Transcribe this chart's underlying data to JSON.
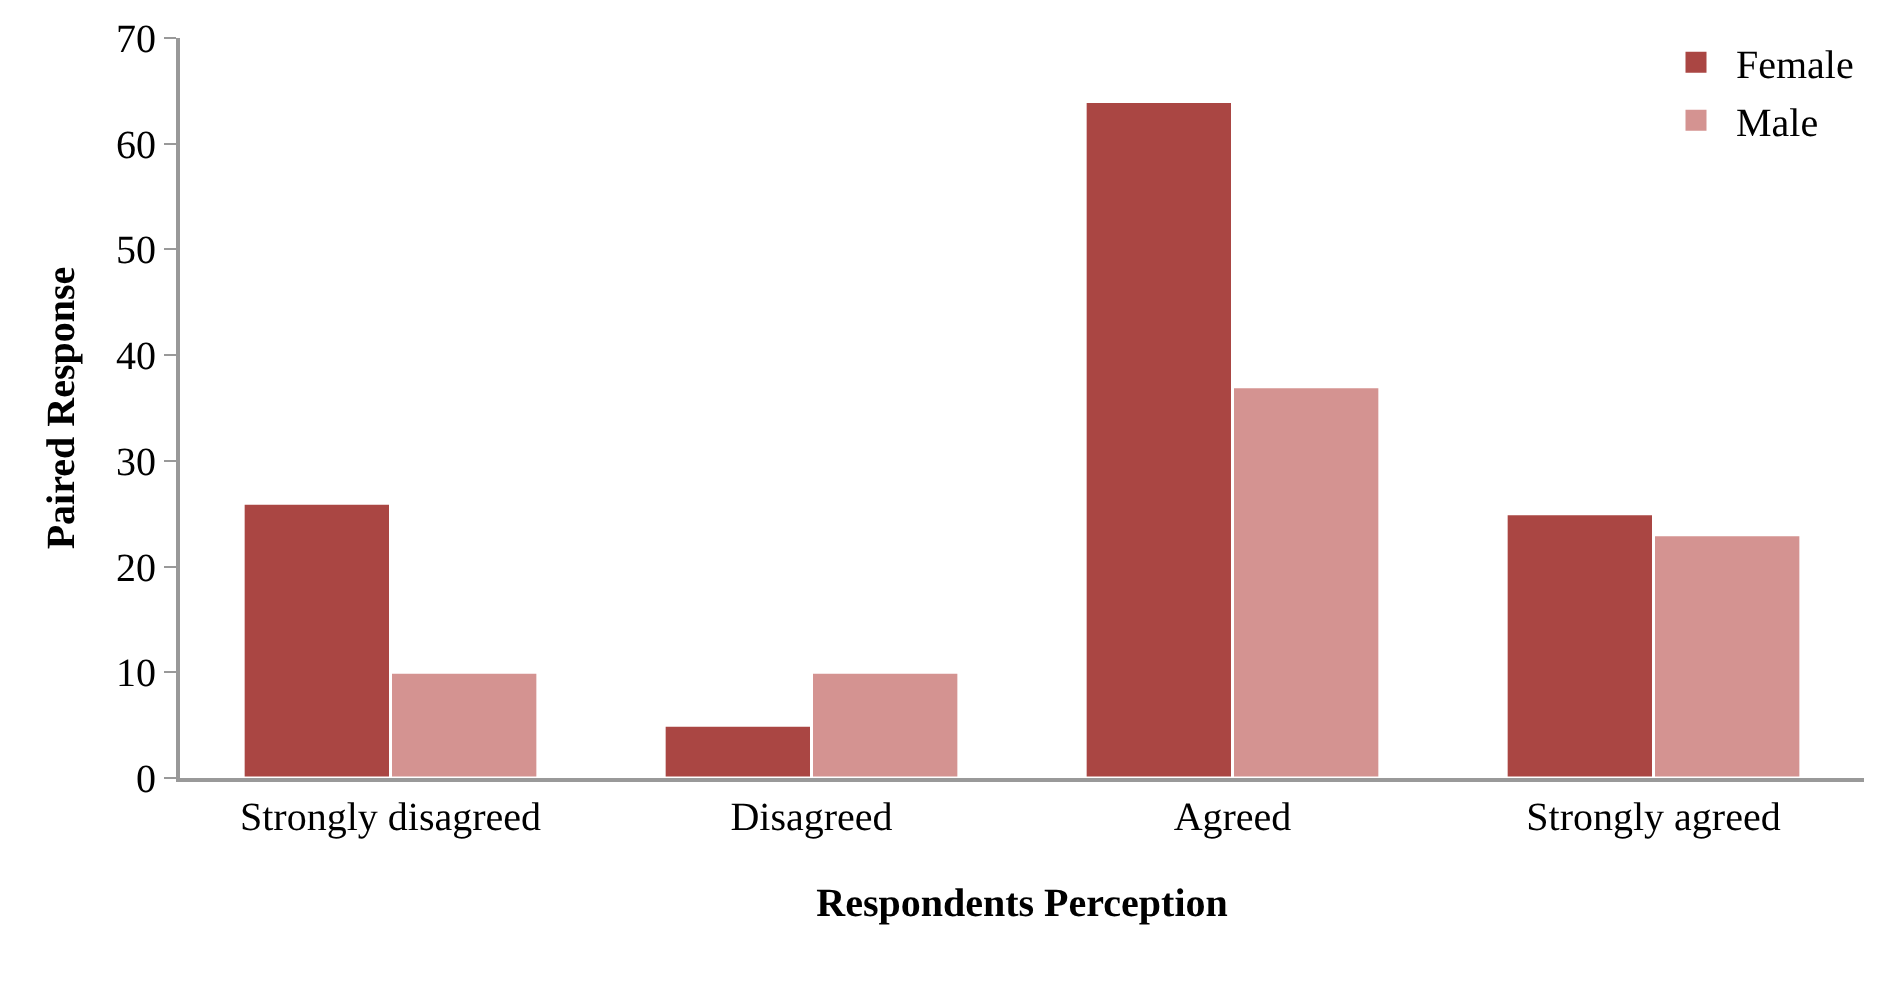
{
  "chart_data": {
    "type": "bar",
    "xlabel": "Respondents Perception",
    "ylabel": "Paired Response",
    "categories": [
      "Strongly disagreed",
      "Disagreed",
      "Agreed",
      "Strongly agreed"
    ],
    "series": [
      {
        "name": "Female",
        "color": "#aa4643",
        "values": [
          26,
          5,
          64,
          25
        ]
      },
      {
        "name": "Male",
        "color": "#d49391",
        "values": [
          10,
          10,
          37,
          23
        ]
      }
    ],
    "ylim": [
      0,
      70
    ],
    "yticks": [
      0,
      10,
      20,
      30,
      40,
      50,
      60,
      70
    ],
    "grid": false,
    "legend": "top right"
  }
}
